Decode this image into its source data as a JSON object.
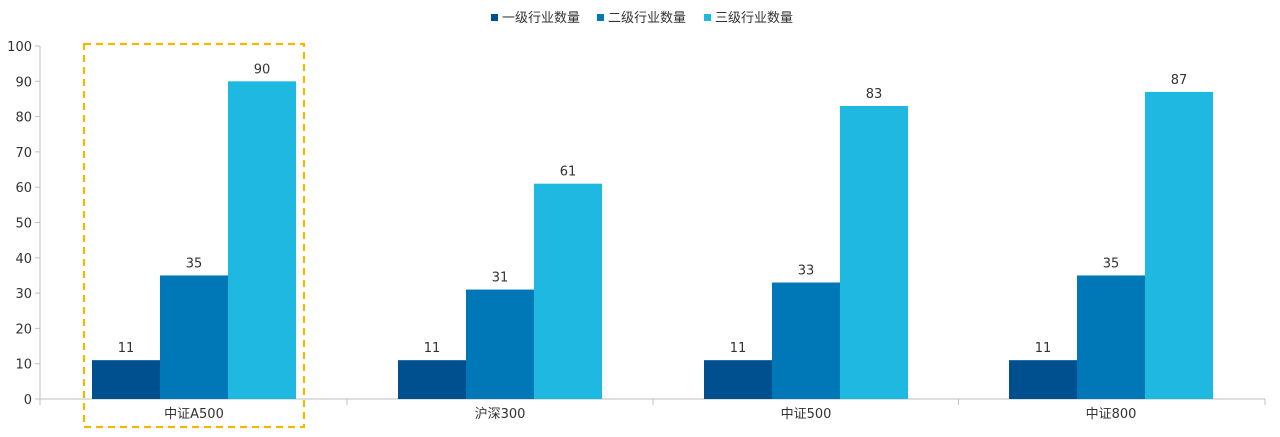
{
  "chart_data": {
    "type": "bar",
    "categories": [
      "中证A500",
      "沪深300",
      "中证500",
      "中证800"
    ],
    "series": [
      {
        "name": "一级行业数量",
        "values": [
          11,
          11,
          11,
          11
        ],
        "color": "#004f8f"
      },
      {
        "name": "二级行业数量",
        "values": [
          35,
          31,
          33,
          35
        ],
        "color": "#0077b6"
      },
      {
        "name": "三级行业数量",
        "values": [
          90,
          61,
          83,
          87
        ],
        "color": "#1fb8e0"
      }
    ],
    "ylim": [
      0,
      100
    ],
    "yticks": [
      0,
      10,
      20,
      30,
      40,
      50,
      60,
      70,
      80,
      90,
      100
    ],
    "title": "",
    "xlabel": "",
    "ylabel": "",
    "grid": false,
    "legend_position": "top-center",
    "data_labels": true,
    "highlight": {
      "category": "中证A500",
      "style": "dashed-box",
      "color": "#f5b800"
    },
    "axis_color": "#bfbfbf"
  }
}
